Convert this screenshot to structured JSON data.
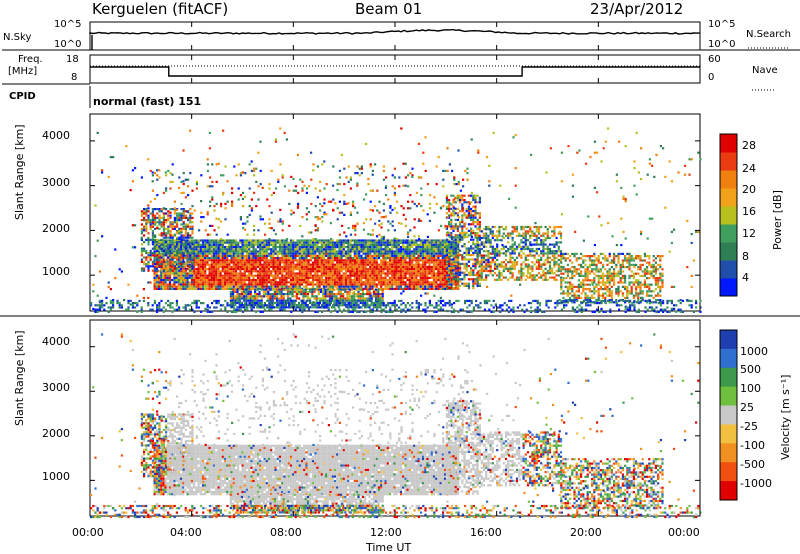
{
  "header": {
    "station": "Kerguelen (fitACF)",
    "beam": "Beam 01",
    "date": "23/Apr/2012"
  },
  "top_panels": {
    "nsky_label": "N.Sky",
    "nsky_ticks": [
      "10^5",
      "10^0"
    ],
    "nsearch_label": "N.Search",
    "nsearch_ticks": [
      "10^5",
      "10^0"
    ],
    "freq_label_1": "Freq.",
    "freq_label_2": "[MHz]",
    "freq_ticks": [
      "18",
      "8"
    ],
    "nave_label": "Nave",
    "nave_ticks": [
      "60",
      "0"
    ],
    "cpid_label": "CPID",
    "cpid_value": "normal (fast) 151"
  },
  "chart_data": [
    {
      "type": "heatmap",
      "title": "",
      "ylabel": "Slant Range [km]",
      "xlabel": "",
      "ylim": [
        200,
        4600
      ],
      "yticks": [
        "4000",
        "3000",
        "2000",
        "1000"
      ],
      "x_ticks": [
        "00:00",
        "04:00",
        "08:00",
        "12:00",
        "16:00",
        "20:00",
        "00:00"
      ],
      "colorbar_label": "Power [dB]",
      "colorbar_ticks": [
        "28",
        "24",
        "20",
        "16",
        "12",
        "8",
        "4"
      ],
      "colors": [
        "#0018ff",
        "#1f4fa8",
        "#2f7f55",
        "#3f9f5f",
        "#b8c020",
        "#f2a21a",
        "#f08010",
        "#ea3c10",
        "#e00000"
      ]
    },
    {
      "type": "heatmap",
      "title": "",
      "ylabel": "Slant Range [km]",
      "xlabel": "Time UT",
      "ylim": [
        200,
        4600
      ],
      "yticks": [
        "4000",
        "3000",
        "2000",
        "1000"
      ],
      "x_ticks": [
        "00:00",
        "04:00",
        "08:00",
        "12:00",
        "16:00",
        "20:00",
        "00:00"
      ],
      "colorbar_label": "Velocity [m s⁻¹]",
      "colorbar_ticks": [
        "1000",
        "500",
        "100",
        "25",
        "-25",
        "-100",
        "-500",
        "-1000"
      ],
      "colors": [
        "#1f3fb0",
        "#2f6fd0",
        "#3c9a4a",
        "#70c040",
        "#c8c8c8",
        "#f2c040",
        "#f09020",
        "#ef5010",
        "#e00000"
      ]
    }
  ]
}
